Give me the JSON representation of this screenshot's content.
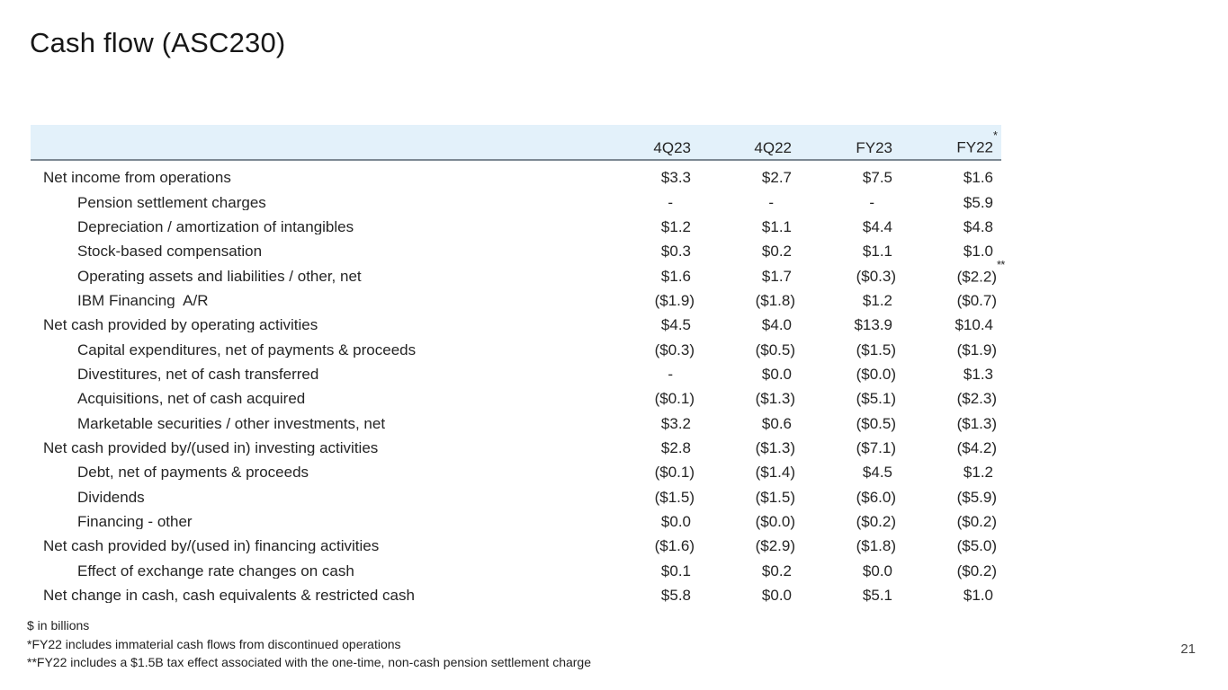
{
  "title": "Cash flow (ASC230)",
  "page_number": "21",
  "colors": {
    "header_band": "#e3f1fa",
    "header_rule": "#7d8993",
    "text": "#252525",
    "title_text": "#171717"
  },
  "table": {
    "columns": [
      {
        "label": "4Q23",
        "sup": ""
      },
      {
        "label": "4Q22",
        "sup": ""
      },
      {
        "label": "FY23",
        "sup": ""
      },
      {
        "label": "FY22",
        "sup": "*"
      }
    ],
    "rows": [
      {
        "label": "Net income from operations",
        "indent": false,
        "values": [
          "$3.3",
          "$2.7",
          "$7.5",
          "$1.6"
        ]
      },
      {
        "label": "Pension settlement charges",
        "indent": true,
        "values": [
          "-",
          "-",
          "-",
          "$5.9"
        ]
      },
      {
        "label": "Depreciation / amortization of intangibles",
        "indent": true,
        "values": [
          "$1.2",
          "$1.1",
          "$4.4",
          "$4.8"
        ]
      },
      {
        "label": "Stock-based compensation",
        "indent": true,
        "values": [
          "$0.3",
          "$0.2",
          "$1.1",
          "$1.0"
        ]
      },
      {
        "label": "Operating assets and liabilities / other, net",
        "indent": true,
        "values": [
          "$1.6",
          "$1.7",
          "($0.3)",
          "($2.2)"
        ],
        "sup_col": 3,
        "sup_text": "**"
      },
      {
        "label": "IBM Financing  A/R",
        "indent": true,
        "values": [
          "($1.9)",
          "($1.8)",
          "$1.2",
          "($0.7)"
        ]
      },
      {
        "label": "Net cash provided by operating activities",
        "indent": false,
        "values": [
          "$4.5",
          "$4.0",
          "$13.9",
          "$10.4"
        ]
      },
      {
        "label": "Capital expenditures, net of payments & proceeds",
        "indent": true,
        "values": [
          "($0.3)",
          "($0.5)",
          "($1.5)",
          "($1.9)"
        ]
      },
      {
        "label": "Divestitures, net of cash transferred",
        "indent": true,
        "values": [
          "-",
          "$0.0",
          "($0.0)",
          "$1.3"
        ]
      },
      {
        "label": "Acquisitions, net of cash acquired",
        "indent": true,
        "values": [
          "($0.1)",
          "($1.3)",
          "($5.1)",
          "($2.3)"
        ]
      },
      {
        "label": "Marketable securities / other investments, net",
        "indent": true,
        "values": [
          "$3.2",
          "$0.6",
          "($0.5)",
          "($1.3)"
        ]
      },
      {
        "label": "Net cash provided by/(used in) investing activities",
        "indent": false,
        "values": [
          "$2.8",
          "($1.3)",
          "($7.1)",
          "($4.2)"
        ]
      },
      {
        "label": "Debt, net of payments & proceeds",
        "indent": true,
        "values": [
          "($0.1)",
          "($1.4)",
          "$4.5",
          "$1.2"
        ]
      },
      {
        "label": "Dividends",
        "indent": true,
        "values": [
          "($1.5)",
          "($1.5)",
          "($6.0)",
          "($5.9)"
        ]
      },
      {
        "label": "Financing - other",
        "indent": true,
        "values": [
          "$0.0",
          "($0.0)",
          "($0.2)",
          "($0.2)"
        ]
      },
      {
        "label": "Net cash provided by/(used in) financing activities",
        "indent": false,
        "values": [
          "($1.6)",
          "($2.9)",
          "($1.8)",
          "($5.0)"
        ]
      },
      {
        "label": "Effect of exchange rate changes on cash",
        "indent": true,
        "values": [
          "$0.1",
          "$0.2",
          "$0.0",
          "($0.2)"
        ]
      },
      {
        "label": "Net change in cash, cash equivalents & restricted cash",
        "indent": false,
        "values": [
          "$5.8",
          "$0.0",
          "$5.1",
          "$1.0"
        ]
      }
    ]
  },
  "footnotes": [
    "$ in billions",
    "*FY22 includes immaterial cash flows from discontinued operations",
    "**FY22 includes a $1.5B tax effect associated with the one-time, non-cash pension settlement charge"
  ]
}
